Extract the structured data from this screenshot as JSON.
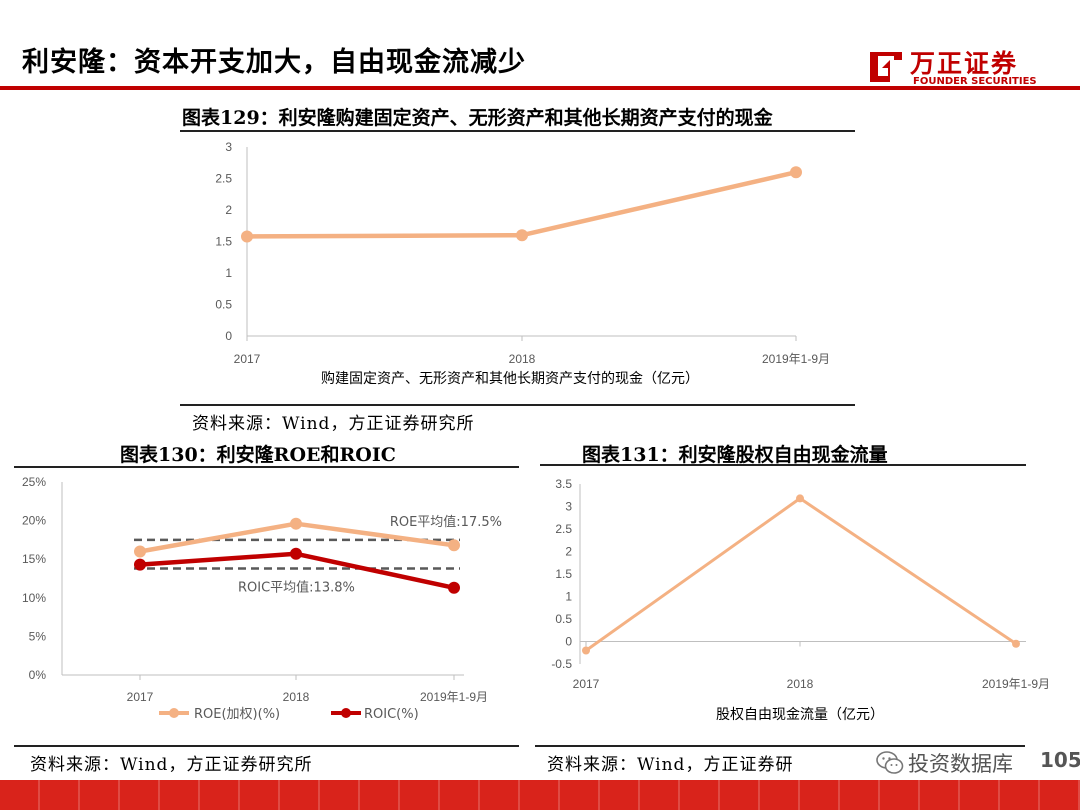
{
  "header": {
    "title": "利安隆：资本开支加大，自由现金流减少",
    "logo_cn": "万正证券",
    "logo_en": "FOUNDER SECURITIES",
    "accent_color": "#c00000"
  },
  "charts": [
    {
      "fig_title": "图表129：利安隆购建固定资产、无形资产和其他长期资产支付的现金",
      "source": "资料来源：Wind，方正证券研究所"
    },
    {
      "fig_title": "图表130：利安隆ROE和ROIC",
      "source": "资料来源：Wind，方正证券研究所"
    },
    {
      "fig_title": "图表131：利安隆股权自由现金流量",
      "source": "资料来源：Wind，方正证券研"
    }
  ],
  "chart_data": [
    {
      "type": "line",
      "categories": [
        "2017",
        "2018",
        "2019年1-9月"
      ],
      "series": [
        {
          "name": "购建固定资产、无形资产和其他长期资产支付的现金（亿元）",
          "values": [
            1.58,
            1.6,
            2.6
          ],
          "color": "#f4b183"
        }
      ],
      "y_ticks": [
        "0",
        "0.5",
        "1",
        "1.5",
        "2",
        "2.5",
        "3"
      ],
      "ylim": [
        0,
        3
      ],
      "grid": false,
      "legend": "bottom"
    },
    {
      "type": "line",
      "categories": [
        "2017",
        "2018",
        "2019年1-9月"
      ],
      "series": [
        {
          "name": "ROE(加权)(%)",
          "values": [
            16.0,
            19.6,
            16.8
          ],
          "color": "#f4b183"
        },
        {
          "name": "ROIC(%)",
          "values": [
            14.3,
            15.7,
            11.3
          ],
          "color": "#c00000"
        }
      ],
      "reference_lines": [
        {
          "label": "ROE平均值:17.5%",
          "value": 17.5
        },
        {
          "label": "ROIC平均值:13.8%",
          "value": 13.8
        }
      ],
      "y_ticks": [
        "0%",
        "5%",
        "10%",
        "15%",
        "20%",
        "25%"
      ],
      "ylim": [
        0,
        25
      ],
      "grid": false,
      "legend": "bottom"
    },
    {
      "type": "line",
      "categories": [
        "2017",
        "2018",
        "2019年1-9月"
      ],
      "series": [
        {
          "name": "股权自由现金流量（亿元）",
          "values": [
            -0.2,
            3.18,
            -0.05
          ],
          "color": "#f4b183"
        }
      ],
      "y_ticks": [
        "-0.5",
        "0",
        "0.5",
        "1",
        "1.5",
        "2",
        "2.5",
        "3",
        "3.5"
      ],
      "ylim": [
        -0.5,
        3.5
      ],
      "grid": false,
      "legend": "bottom"
    }
  ],
  "footer": {
    "watermark": "投资数据库",
    "page_number": "105"
  }
}
